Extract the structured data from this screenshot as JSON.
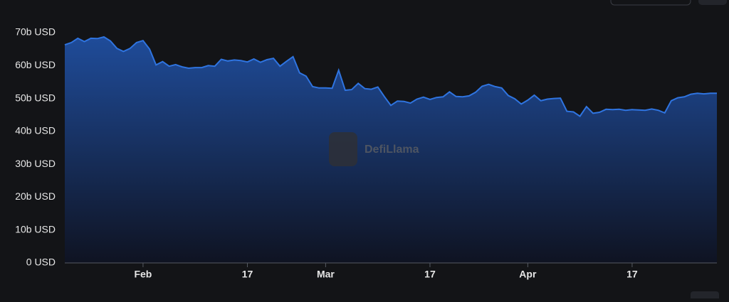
{
  "chart_data": {
    "type": "area",
    "watermark": "DefiLlama",
    "categories": [
      null,
      null,
      null,
      null,
      null,
      null,
      null,
      null,
      null,
      null,
      null,
      null,
      "Feb",
      null,
      null,
      null,
      null,
      null,
      null,
      null,
      null,
      null,
      null,
      null,
      null,
      null,
      null,
      null,
      "17",
      null,
      null,
      null,
      null,
      null,
      null,
      null,
      null,
      null,
      null,
      null,
      "Mar",
      null,
      null,
      null,
      null,
      null,
      null,
      null,
      null,
      null,
      null,
      null,
      null,
      null,
      null,
      null,
      "17",
      null,
      null,
      null,
      null,
      null,
      null,
      null,
      null,
      null,
      null,
      null,
      null,
      null,
      null,
      "Apr",
      null,
      null,
      null,
      null,
      null,
      null,
      null,
      null,
      null,
      null,
      null,
      null,
      null,
      null,
      null,
      "17",
      null,
      null,
      null,
      null,
      null,
      null,
      null,
      null,
      null,
      null,
      null,
      null,
      null
    ],
    "series": [
      {
        "color": "#2f74e0",
        "values": [
          66.3,
          67,
          68.3,
          67.3,
          68.3,
          68.2,
          68.7,
          67.5,
          65.2,
          64.3,
          65.2,
          67,
          67.6,
          65,
          60.2,
          61.2,
          59.8,
          60.3,
          59.6,
          59.2,
          59.4,
          59.4,
          60,
          59.8,
          61.9,
          61.4,
          61.7,
          61.5,
          61.1,
          62,
          61,
          61.8,
          62.2,
          59.8,
          61.3,
          62.7,
          57.8,
          56.8,
          53.6,
          53.2,
          53.2,
          53.1,
          58.6,
          52.5,
          52.7,
          54.6,
          53,
          52.8,
          53.5,
          50.6,
          47.9,
          49.2,
          49.1,
          48.6,
          49.8,
          50.4,
          49.7,
          50.3,
          50.5,
          52,
          50.6,
          50.5,
          50.8,
          51.9,
          53.7,
          54.3,
          53.6,
          53.2,
          50.9,
          49.9,
          48.3,
          49.5,
          51,
          49.3,
          49.8,
          50,
          50.1,
          46.1,
          45.9,
          44.6,
          47.5,
          45.5,
          45.8,
          46.7,
          46.6,
          46.7,
          46.4,
          46.6,
          46.5,
          46.4,
          46.8,
          46.4,
          45.6,
          49.3,
          50.2,
          50.5,
          51.3,
          51.6,
          51.4,
          51.6,
          51.6
        ]
      }
    ],
    "ylim": [
      0,
      70
    ],
    "yticks": [
      {
        "value": 0,
        "label": "0 USD"
      },
      {
        "value": 10,
        "label": "10b USD"
      },
      {
        "value": 20,
        "label": "20b USD"
      },
      {
        "value": 30,
        "label": "30b USD"
      },
      {
        "value": 40,
        "label": "40b USD"
      },
      {
        "value": 50,
        "label": "50b USD"
      },
      {
        "value": 60,
        "label": "60b USD"
      },
      {
        "value": 70,
        "label": "70b USD"
      }
    ],
    "grid": false
  }
}
